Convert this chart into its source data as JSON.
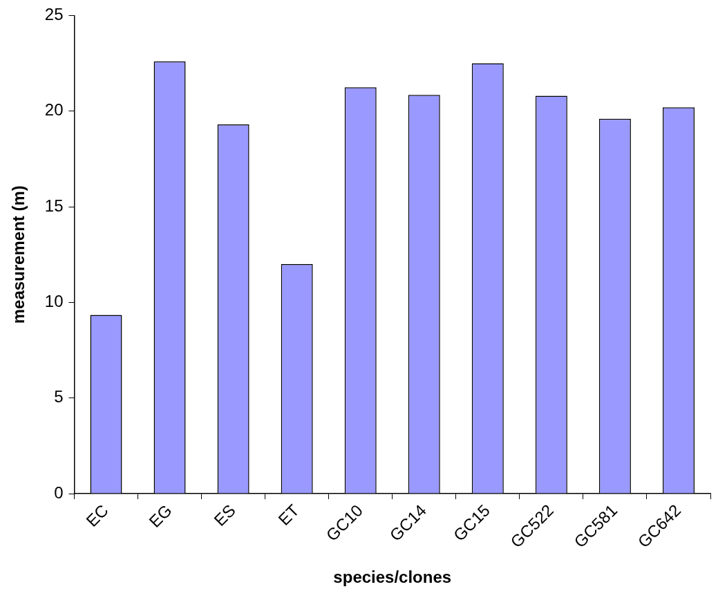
{
  "chart_data": {
    "type": "bar",
    "xlabel": "species/clones",
    "ylabel": "measurement (m)",
    "categories": [
      "EC",
      "EG",
      "ES",
      "ET",
      "GC10",
      "GC14",
      "GC15",
      "GC522",
      "GC581",
      "GC642"
    ],
    "values": [
      9.35,
      22.6,
      19.3,
      12.0,
      21.25,
      20.85,
      22.5,
      20.8,
      19.6,
      20.2
    ],
    "color": "#9999ff",
    "ylim": [
      0,
      25
    ],
    "yticks": [
      0,
      5,
      10,
      15,
      20,
      25
    ],
    "grid": false,
    "legend": false
  }
}
